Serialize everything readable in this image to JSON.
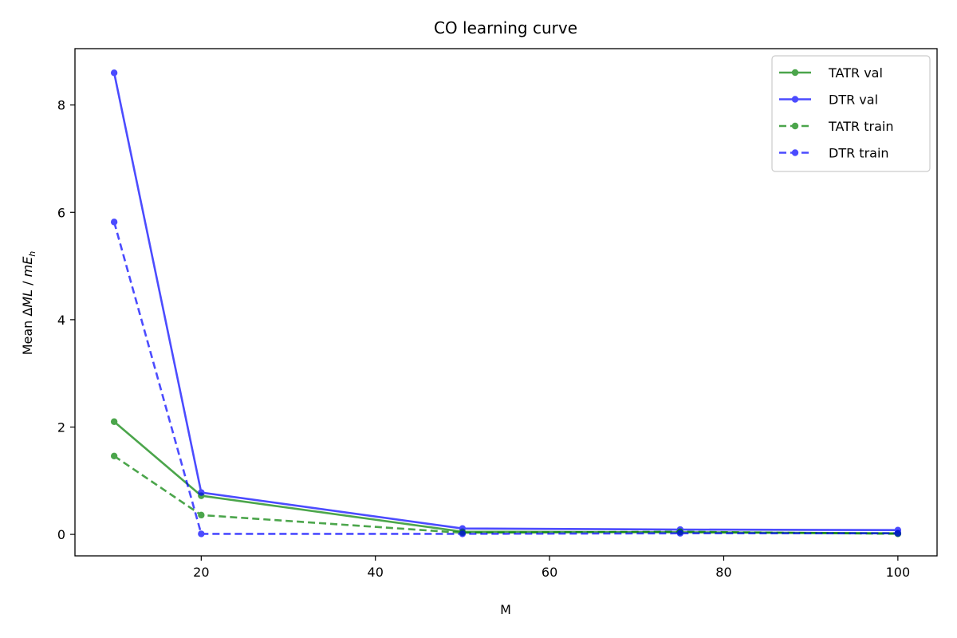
{
  "chart_data": {
    "type": "line",
    "title": "CO learning curve",
    "xlabel": "M",
    "ylabel_prefix": "Mean ",
    "ylabel_delta": "Δ",
    "ylabel_ml": "ML",
    "ylabel_sep": " / ",
    "ylabel_m": "mE",
    "ylabel_sub": "h",
    "xlim": [
      5.5,
      104.5
    ],
    "ylim": [
      -0.4,
      9.05
    ],
    "xticks": [
      20,
      40,
      60,
      80,
      100
    ],
    "yticks": [
      0,
      2,
      4,
      6,
      8
    ],
    "legend_position": "top-right",
    "x": [
      10,
      20,
      50,
      75,
      100
    ],
    "series": [
      {
        "name": "TATR val",
        "color": "#008000",
        "style": "solid",
        "values": [
          2.1,
          0.72,
          0.05,
          0.04,
          0.02
        ]
      },
      {
        "name": "DTR val",
        "color": "#0000ff",
        "style": "solid",
        "values": [
          8.6,
          0.78,
          0.11,
          0.09,
          0.08
        ]
      },
      {
        "name": "TATR train",
        "color": "#008000",
        "style": "dashed",
        "values": [
          1.46,
          0.36,
          0.03,
          0.05,
          0.01
        ]
      },
      {
        "name": "DTR train",
        "color": "#0000ff",
        "style": "dashed",
        "values": [
          5.82,
          0.01,
          0.01,
          0.02,
          0.02
        ]
      }
    ]
  }
}
